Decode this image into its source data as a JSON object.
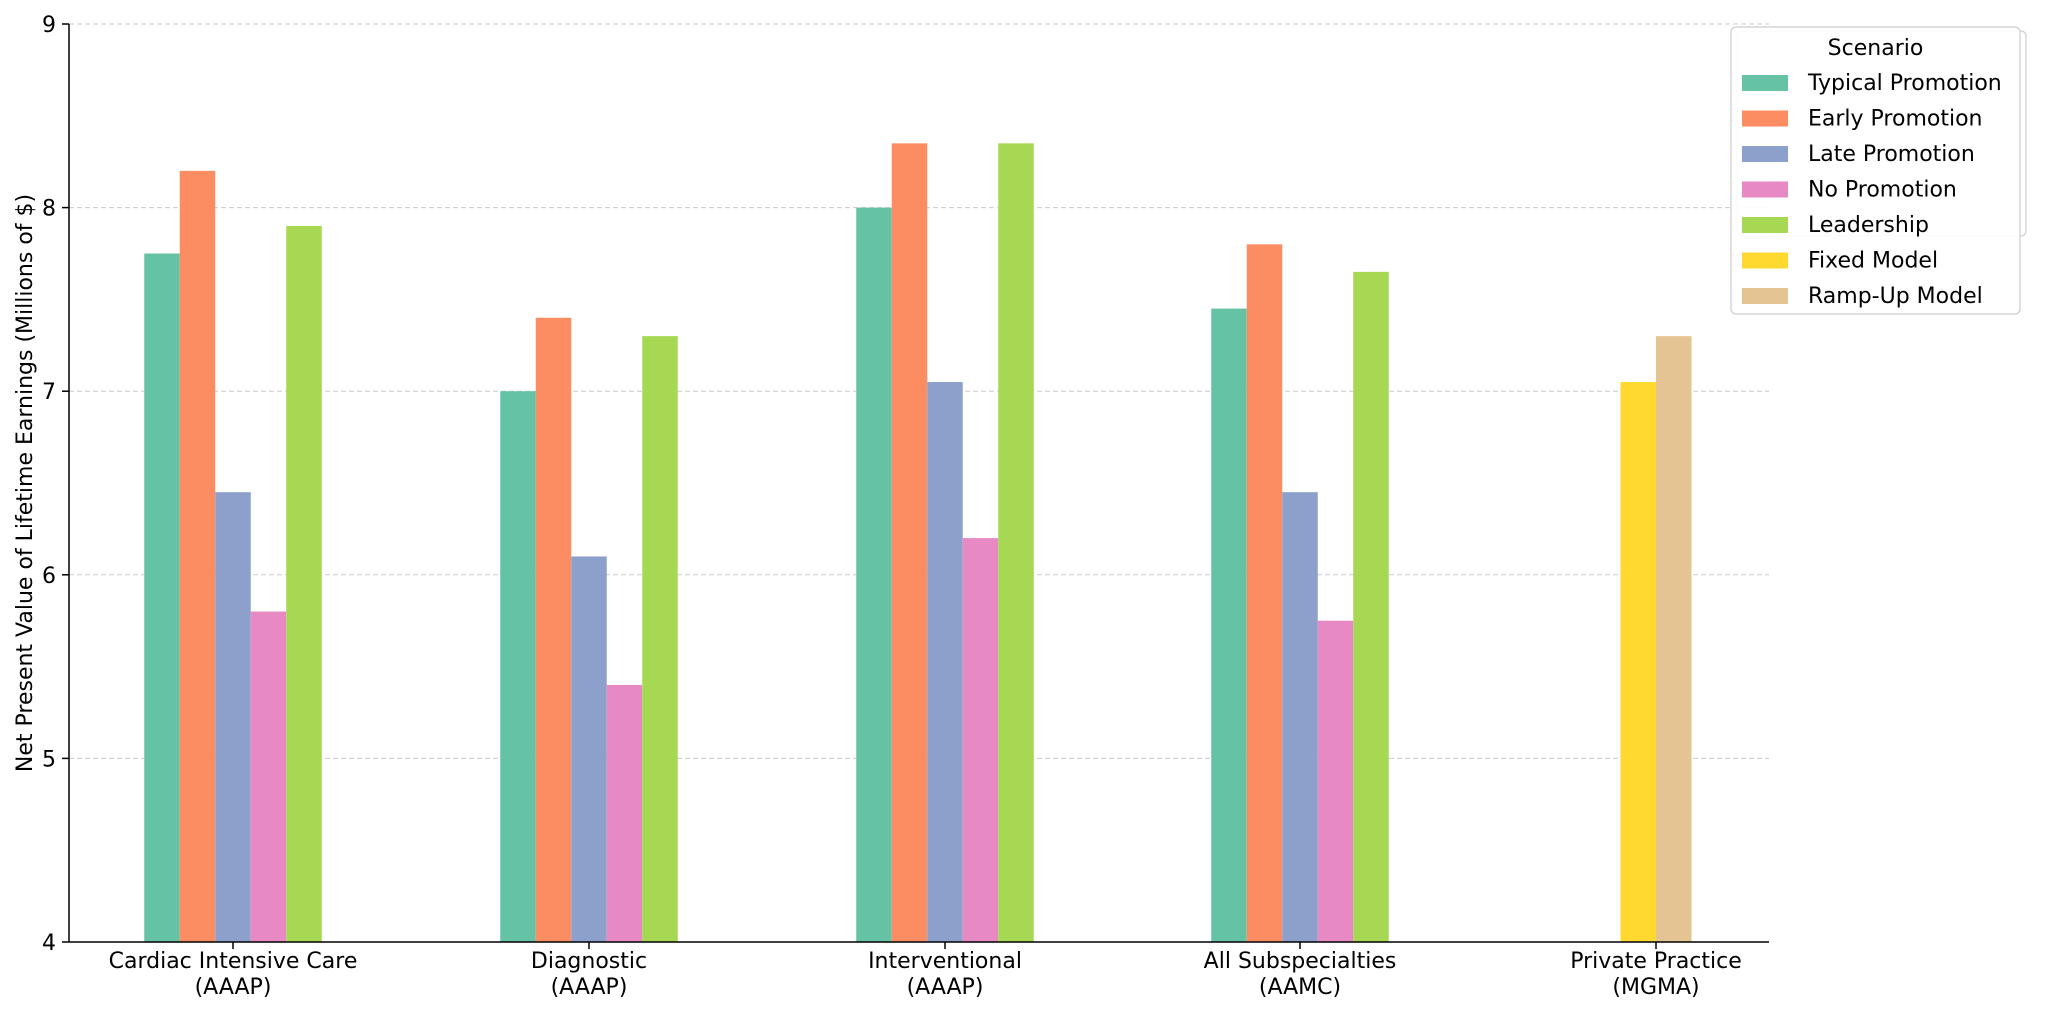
{
  "chart_data": {
    "type": "bar",
    "title": "",
    "xlabel": "",
    "ylabel": "Net Present Value of Lifetime Earnings (Millions of $)",
    "ylim": [
      4,
      9
    ],
    "yticks": [
      "4",
      "5",
      "6",
      "7",
      "8",
      "9"
    ],
    "grid": true,
    "categories": [
      [
        "Cardiac Intensive Care",
        "(AAAP)"
      ],
      [
        "Diagnostic",
        "(AAAP)"
      ],
      [
        "Interventional",
        "(AAAP)"
      ],
      [
        "All Subspecialties",
        "(AAMC)"
      ],
      [
        "Private Practice",
        "(MGMA)"
      ]
    ],
    "legend": {
      "title": "Scenario",
      "placement": "top-right"
    },
    "series": [
      {
        "name": "Typical Promotion",
        "color": "#66c2a5",
        "values": [
          7.75,
          7.0,
          8.0,
          7.45,
          null
        ]
      },
      {
        "name": "Early Promotion",
        "color": "#fc8d62",
        "values": [
          8.2,
          7.4,
          8.35,
          7.8,
          null
        ]
      },
      {
        "name": "Late Promotion",
        "color": "#8da0cb",
        "values": [
          6.45,
          6.1,
          7.05,
          6.45,
          null
        ]
      },
      {
        "name": "No Promotion",
        "color": "#e78ac3",
        "values": [
          5.8,
          5.4,
          6.2,
          5.75,
          null
        ]
      },
      {
        "name": "Leadership",
        "color": "#a6d854",
        "values": [
          7.9,
          7.3,
          8.35,
          7.65,
          null
        ]
      },
      {
        "name": "Fixed Model",
        "color": "#ffd92f",
        "values": [
          null,
          null,
          null,
          null,
          7.05
        ]
      },
      {
        "name": "Ramp-Up Model",
        "color": "#e5c494",
        "values": [
          null,
          null,
          null,
          null,
          7.3
        ]
      }
    ]
  }
}
